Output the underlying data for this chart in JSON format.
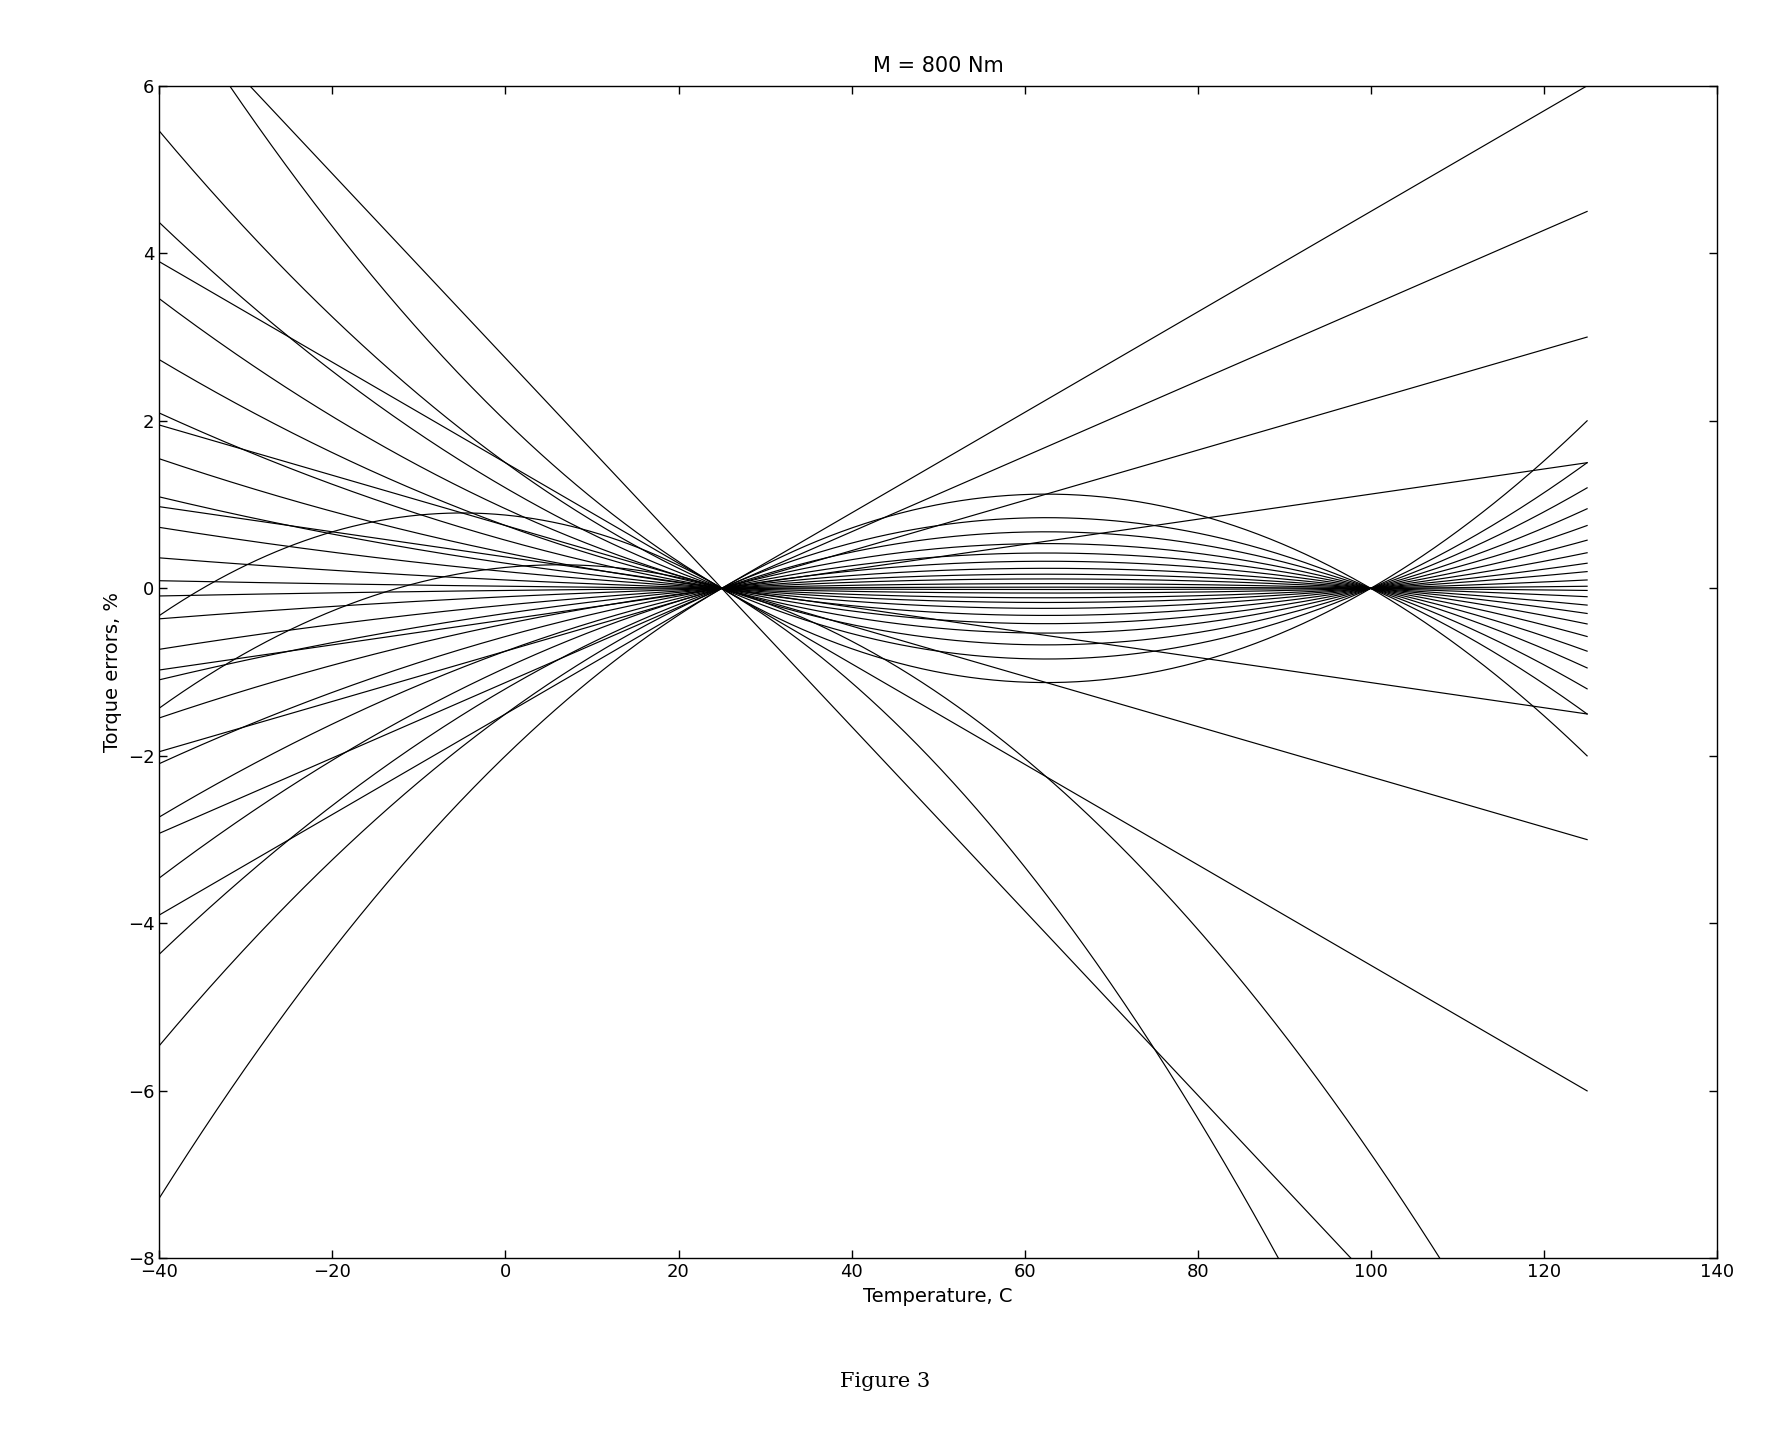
{
  "title": "M = 800 Nm",
  "xlabel": "Temperature, C",
  "ylabel": "Torque errors, %",
  "caption": "Figure 3",
  "xlim": [
    -40,
    140
  ],
  "ylim": [
    -8,
    6
  ],
  "xticks": [
    -40,
    -20,
    0,
    20,
    40,
    60,
    80,
    100,
    120,
    140
  ],
  "yticks": [
    -8,
    -6,
    -4,
    -2,
    0,
    2,
    4,
    6
  ],
  "calib_temp": 25,
  "T_min": -40,
  "T_max": 125,
  "line_color": "#000000",
  "line_width": 0.85,
  "background_color": "#ffffff",
  "title_fontsize": 15,
  "label_fontsize": 14,
  "tick_fontsize": 13,
  "caption_fontsize": 15,
  "quadratic_c": [
    0.0008,
    0.0006,
    0.00048,
    0.00038,
    0.0003,
    0.00023,
    0.00017,
    0.00012,
    8e-05,
    4e-05,
    1e-05,
    -1e-05,
    -4e-05,
    -8e-05,
    -0.00012,
    -0.00017,
    -0.00023,
    -0.0003,
    -0.00038,
    -0.00048,
    -0.0006,
    -0.0008
  ],
  "extra_slopes": [
    0.06,
    0.045,
    0.03,
    0.015,
    -0.015,
    -0.03,
    -0.06,
    -0.11
  ],
  "extreme_params": [
    {
      "slope": -0.06,
      "curv": -0.001
    },
    {
      "slope": -0.03,
      "curv": -0.0008
    }
  ]
}
